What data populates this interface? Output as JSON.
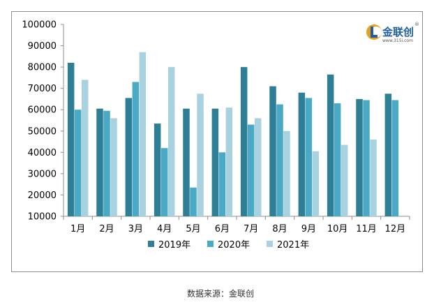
{
  "chart_data": {
    "type": "bar",
    "title": "",
    "xlabel": "",
    "ylabel": "",
    "ylim": [
      10000,
      100000
    ],
    "ytick_step": 10000,
    "grid": false,
    "legend_position": "bottom",
    "categories": [
      "1月",
      "2月",
      "3月",
      "4月",
      "5月",
      "6月",
      "7月",
      "8月",
      "9月",
      "10月",
      "11月",
      "12月"
    ],
    "series": [
      {
        "name": "2019年",
        "color": "#2e7f96",
        "values": [
          82000,
          60500,
          65500,
          53500,
          60500,
          60500,
          80000,
          71000,
          68000,
          76500,
          65000,
          67500
        ]
      },
      {
        "name": "2020年",
        "color": "#4aaac5",
        "values": [
          60000,
          59500,
          73000,
          42000,
          23500,
          40000,
          53000,
          62500,
          65500,
          63000,
          64500,
          64500
        ]
      },
      {
        "name": "2021年",
        "color": "#a9d2e0",
        "values": [
          74000,
          56000,
          87000,
          80000,
          67500,
          61000,
          56000,
          50000,
          40500,
          43500,
          46000,
          null
        ]
      }
    ]
  },
  "logo": {
    "name": "金联创",
    "url": "www.315i.com",
    "mark": "®"
  },
  "source_note": "数据来源：金联创"
}
